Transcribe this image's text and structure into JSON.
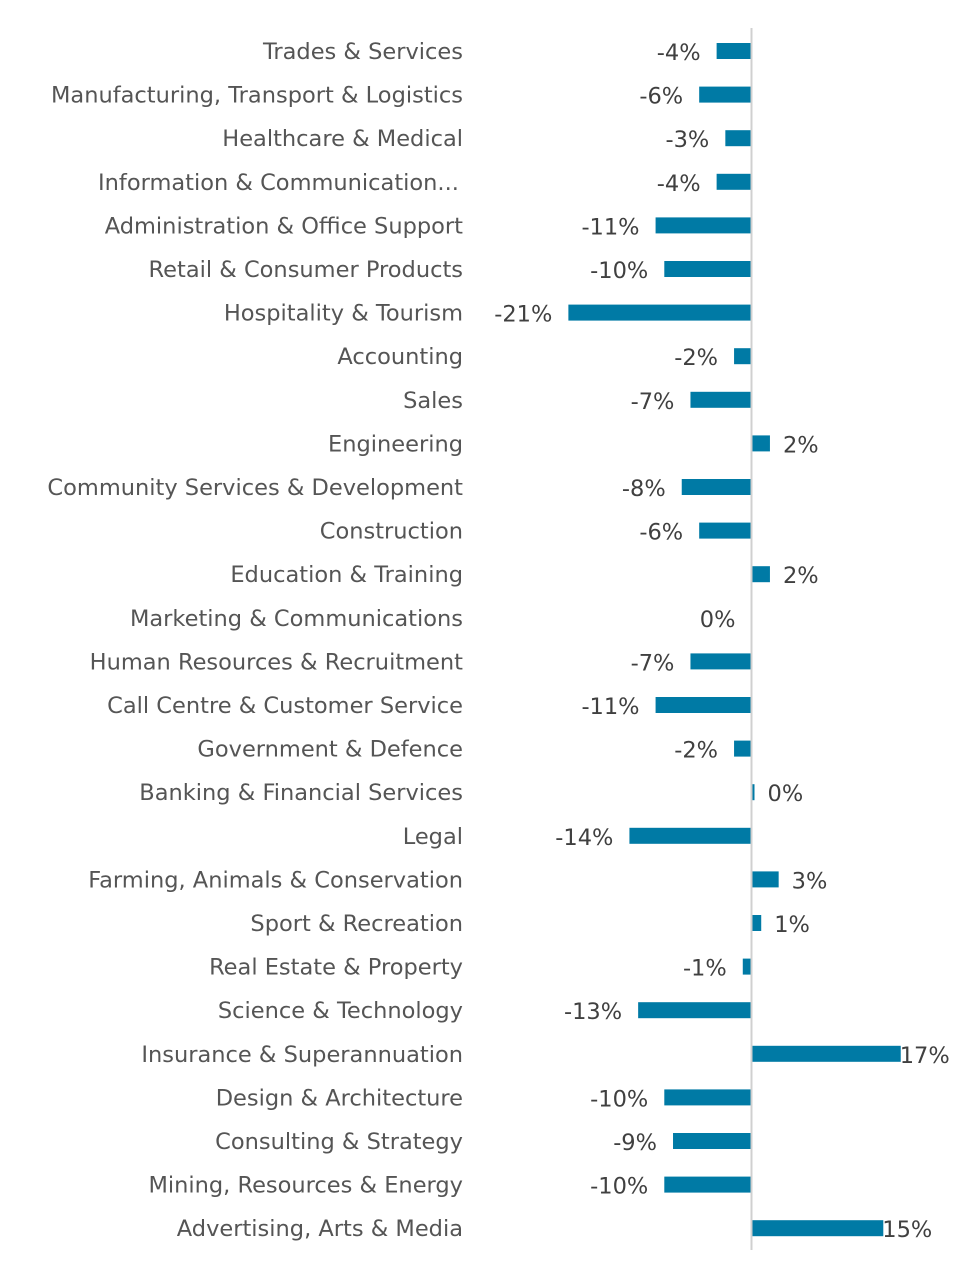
{
  "chart_data": {
    "type": "bar",
    "orientation": "horizontal",
    "title": "",
    "xlabel": "",
    "ylabel": "",
    "grid": false,
    "legend": "none",
    "bar_color": "#007AA5",
    "axis_color": "#D0D0D0",
    "categories": [
      "Trades & Services",
      "Manufacturing, Transport & Logistics",
      "Healthcare & Medical",
      "Information & Communication...",
      "Administration & Office Support",
      "Retail & Consumer Products",
      "Hospitality & Tourism",
      "Accounting",
      "Sales",
      "Engineering",
      "Community Services & Development",
      "Construction",
      "Education & Training",
      "Marketing & Communications",
      "Human Resources & Recruitment",
      "Call Centre & Customer Service",
      "Government & Defence",
      "Banking & Financial Services",
      "Legal",
      "Farming, Animals & Conservation",
      "Sport & Recreation",
      "Real Estate & Property",
      "Science & Technology",
      "Insurance & Superannuation",
      "Design & Architecture",
      "Consulting & Strategy",
      "Mining, Resources & Energy",
      "Advertising, Arts & Media"
    ],
    "values": [
      -4,
      -6,
      -3,
      -4,
      -11,
      -10,
      -21,
      -2,
      -7,
      2,
      -8,
      -6,
      2,
      0,
      -7,
      -11,
      -2,
      0.2,
      -14,
      3,
      1,
      -1,
      -13,
      17,
      -10,
      -9,
      -10,
      15
    ],
    "labels": [
      "-4%",
      "-6%",
      "-3%",
      "-4%",
      "-11%",
      "-10%",
      "-21%",
      "-2%",
      "-7%",
      "2%",
      "-8%",
      "-6%",
      "2%",
      "0%",
      "-7%",
      "-11%",
      "-2%",
      "0%",
      "-14%",
      "3%",
      "1%",
      "-1%",
      "-13%",
      "17%",
      "-10%",
      "-9%",
      "-10%",
      "15%"
    ],
    "xlim": [
      -25,
      22
    ]
  }
}
